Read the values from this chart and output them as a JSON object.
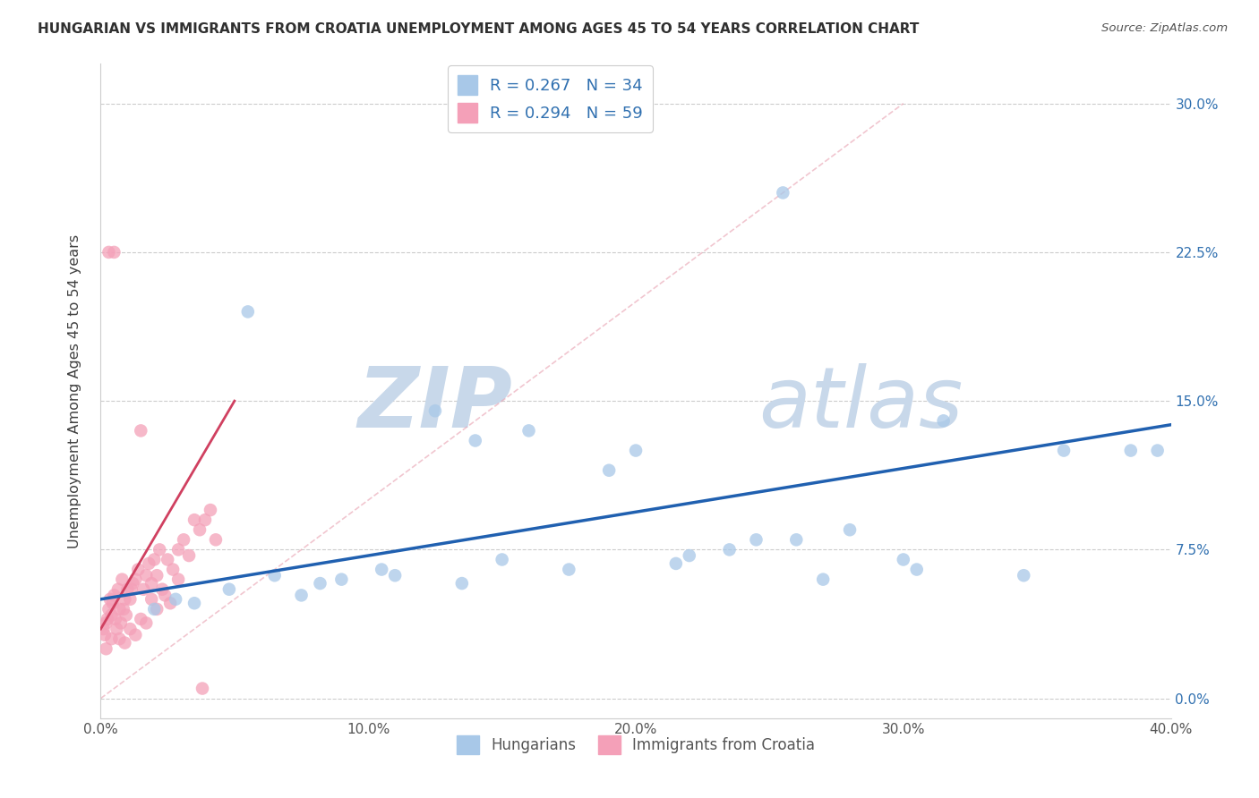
{
  "title": "HUNGARIAN VS IMMIGRANTS FROM CROATIA UNEMPLOYMENT AMONG AGES 45 TO 54 YEARS CORRELATION CHART",
  "source": "Source: ZipAtlas.com",
  "xlabel_ticks": [
    "0.0%",
    "10.0%",
    "20.0%",
    "30.0%",
    "40.0%"
  ],
  "xlabel_vals": [
    0.0,
    10.0,
    20.0,
    30.0,
    40.0
  ],
  "ylabel_ticks": [
    "0.0%",
    "7.5%",
    "15.0%",
    "22.5%",
    "30.0%"
  ],
  "ylabel_vals": [
    0.0,
    7.5,
    15.0,
    22.5,
    30.0
  ],
  "xlim": [
    0.0,
    40.0
  ],
  "ylim": [
    -1.0,
    32.0
  ],
  "legend_entry1": "R = 0.267   N = 34",
  "legend_entry2": "R = 0.294   N = 59",
  "legend_label1": "Hungarians",
  "legend_label2": "Immigrants from Croatia",
  "blue_color": "#a8c8e8",
  "pink_color": "#f4a0b8",
  "blue_line_color": "#2060b0",
  "pink_line_color": "#d04060",
  "diag_line_color": "#e8a0b0",
  "legend_text_color": "#3070b0",
  "title_color": "#303030",
  "watermark_color": "#c8d8ea",
  "blue_x": [
    2.0,
    3.5,
    4.8,
    7.5,
    8.2,
    9.0,
    10.5,
    11.0,
    12.5,
    13.5,
    15.0,
    16.0,
    17.5,
    19.0,
    20.0,
    21.5,
    22.0,
    23.5,
    25.5,
    26.0,
    28.0,
    30.0,
    30.5,
    31.5,
    34.5,
    36.0,
    38.5,
    2.8,
    5.5,
    6.5,
    14.0,
    24.5,
    27.0,
    39.5
  ],
  "blue_y": [
    4.5,
    4.8,
    5.5,
    5.2,
    5.8,
    6.0,
    6.5,
    6.2,
    14.5,
    5.8,
    7.0,
    13.5,
    6.5,
    11.5,
    12.5,
    6.8,
    7.2,
    7.5,
    25.5,
    8.0,
    8.5,
    7.0,
    6.5,
    14.0,
    6.2,
    12.5,
    12.5,
    5.0,
    19.5,
    6.2,
    13.0,
    8.0,
    6.0,
    12.5
  ],
  "pink_x": [
    0.1,
    0.15,
    0.2,
    0.25,
    0.3,
    0.35,
    0.4,
    0.45,
    0.5,
    0.55,
    0.6,
    0.65,
    0.7,
    0.75,
    0.8,
    0.85,
    0.9,
    0.95,
    1.0,
    1.1,
    1.15,
    1.2,
    1.3,
    1.4,
    1.5,
    1.6,
    1.7,
    1.8,
    1.9,
    2.0,
    2.1,
    2.2,
    2.3,
    2.5,
    2.7,
    2.9,
    3.1,
    3.3,
    3.5,
    3.7,
    3.9,
    4.1,
    4.3,
    0.3,
    0.5,
    0.7,
    0.9,
    1.1,
    1.3,
    1.5,
    1.7,
    1.9,
    2.1,
    2.4,
    2.6,
    2.9,
    0.2,
    0.4,
    3.8
  ],
  "pink_y": [
    3.5,
    3.2,
    3.8,
    4.0,
    4.5,
    5.0,
    4.2,
    4.8,
    5.2,
    4.0,
    3.5,
    5.5,
    4.5,
    3.8,
    6.0,
    4.5,
    5.0,
    4.2,
    5.5,
    5.0,
    5.5,
    5.8,
    6.0,
    6.5,
    13.5,
    5.5,
    6.2,
    6.8,
    5.8,
    7.0,
    6.2,
    7.5,
    5.5,
    7.0,
    6.5,
    7.5,
    8.0,
    7.2,
    9.0,
    8.5,
    9.0,
    9.5,
    8.0,
    22.5,
    22.5,
    3.0,
    2.8,
    3.5,
    3.2,
    4.0,
    3.8,
    5.0,
    4.5,
    5.2,
    4.8,
    6.0,
    2.5,
    3.0,
    0.5
  ],
  "blue_trend": [
    0.0,
    40.0,
    5.0,
    13.8
  ],
  "pink_trend": [
    0.0,
    5.0,
    3.5,
    15.0
  ],
  "diag_line": [
    0.0,
    30.0,
    0.0,
    30.0
  ]
}
